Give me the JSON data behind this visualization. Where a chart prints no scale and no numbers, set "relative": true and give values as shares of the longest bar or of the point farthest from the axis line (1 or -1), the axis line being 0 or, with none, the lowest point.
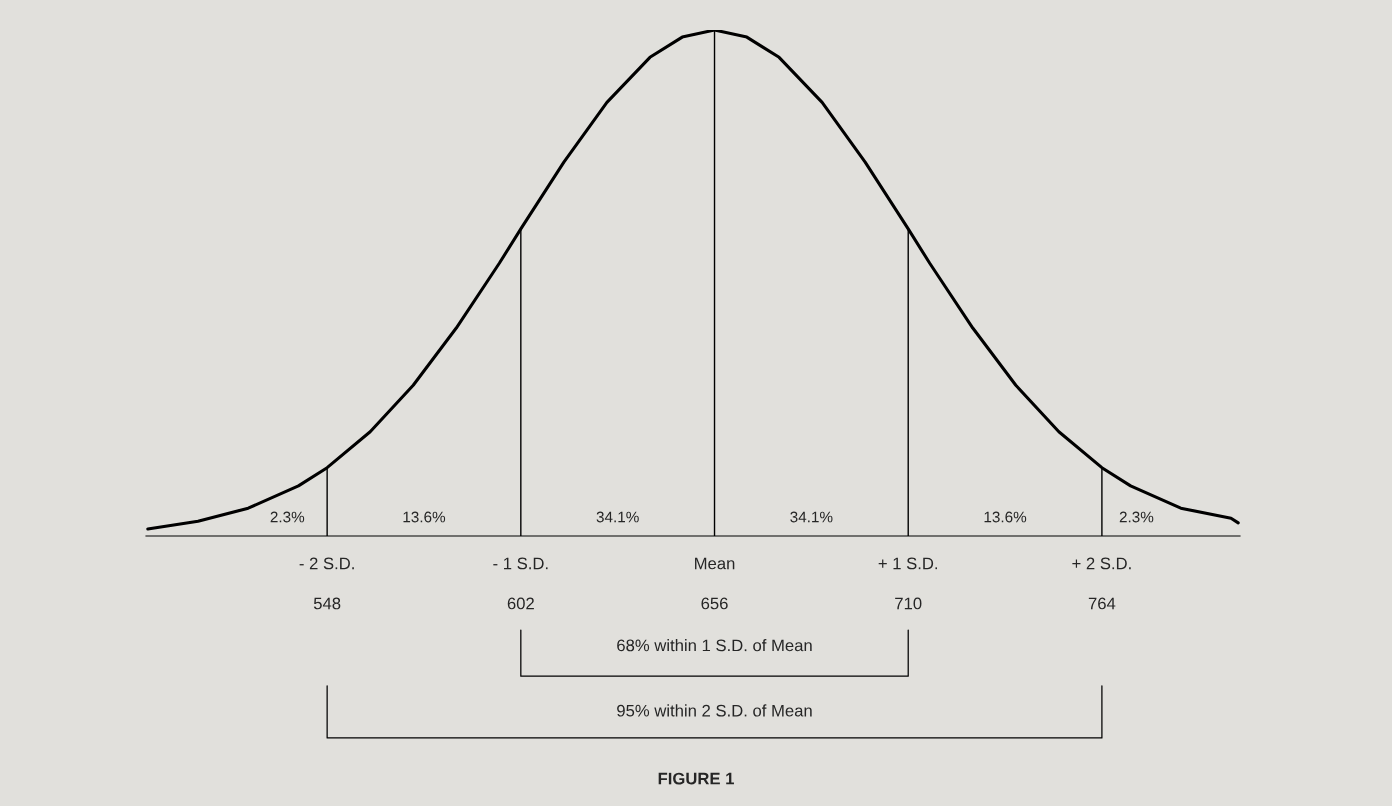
{
  "chart_data": {
    "type": "line",
    "relative": true,
    "title": "FIGURE 1",
    "x": [
      498,
      512,
      526,
      540,
      548,
      560,
      572,
      584,
      596,
      602,
      614,
      626,
      638,
      647,
      656,
      665,
      674,
      686,
      698,
      710,
      716,
      728,
      740,
      752,
      764,
      772,
      786,
      800,
      802
    ],
    "series": [
      {
        "color": "#000000",
        "values": [
          0.014,
          0.029,
          0.055,
          0.099,
          0.135,
          0.206,
          0.298,
          0.411,
          0.539,
          0.607,
          0.739,
          0.857,
          0.946,
          0.986,
          1,
          0.986,
          0.946,
          0.857,
          0.739,
          0.607,
          0.539,
          0.411,
          0.298,
          0.206,
          0.135,
          0.099,
          0.055,
          0.035,
          0.026
        ]
      }
    ],
    "xlim": [
      497.5,
      802.5
    ],
    "xticks": [
      548,
      602,
      656,
      710,
      764
    ],
    "ref_lines": [
      {
        "axis": "x",
        "value": 548,
        "label": "- 2 S.D."
      },
      {
        "axis": "x",
        "value": 602,
        "label": "- 1 S.D."
      },
      {
        "axis": "x",
        "value": 656,
        "label": "Mean"
      },
      {
        "axis": "x",
        "value": 710,
        "label": "+ 1 S.D."
      },
      {
        "axis": "x",
        "value": 764,
        "label": "+ 2 S.D."
      }
    ],
    "annotations": [
      "2.3%",
      "13.6%",
      "34.1%",
      "34.1%",
      "13.6%",
      "2.3%",
      "68% within 1 S.D. of Mean",
      "95% within 2 S.D. of Mean"
    ],
    "grid": false,
    "legend": false,
    "marker": "none",
    "line_style": "solid"
  }
}
